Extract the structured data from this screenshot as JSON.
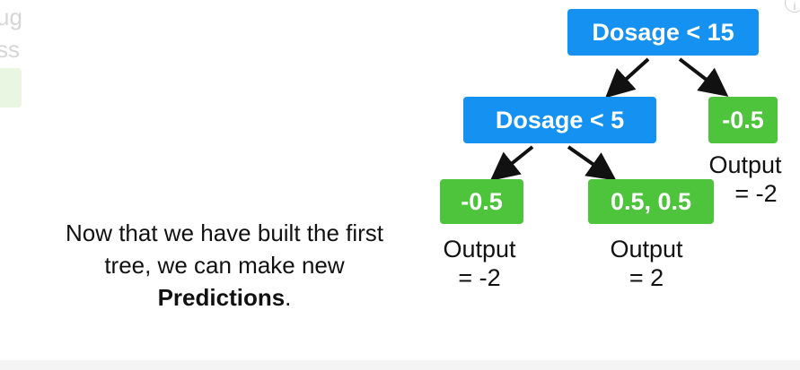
{
  "ghost": {
    "line1": "ug",
    "line2": "ss"
  },
  "info_icon": "i",
  "tree": {
    "root": "Dosage < 15",
    "inner": "Dosage < 5",
    "leaf_right": "-0.5",
    "leaf_left_left": "-0.5",
    "leaf_left_right": "0.5, 0.5"
  },
  "outputs": {
    "right": {
      "label": "Output",
      "value": "= -2"
    },
    "left_left": {
      "label": "Output",
      "value": "= -2"
    },
    "left_right": {
      "label": "Output",
      "value": "= 2"
    }
  },
  "caption": {
    "text_before": "Now that we have built the first tree, we can make new ",
    "bold": "Predictions",
    "text_after": "."
  },
  "colors": {
    "decision_node": "#1591f1",
    "leaf_node": "#4dc43b",
    "arrow": "#111111"
  }
}
